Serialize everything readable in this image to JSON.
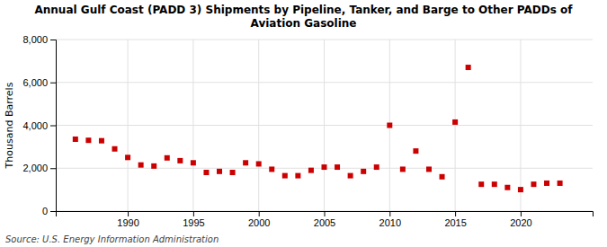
{
  "chart_data": {
    "type": "scatter",
    "title": "Annual Gulf Coast (PADD 3) Shipments by Pipeline, Tanker, and Barge to Other PADDs of\nAviation Gasoline",
    "y_label": "Thousand Barrels",
    "annotations": [
      "Source: U.S. Energy Information Administration"
    ],
    "x": [
      1986,
      1987,
      1988,
      1989,
      1990,
      1991,
      1992,
      1993,
      1994,
      1995,
      1996,
      1997,
      1998,
      1999,
      2000,
      2001,
      2002,
      2003,
      2004,
      2005,
      2006,
      2007,
      2008,
      2009,
      2010,
      2011,
      2012,
      2013,
      2014,
      2015,
      2016,
      2017,
      2018,
      2019,
      2020,
      2021,
      2022,
      2023
    ],
    "values": [
      3350,
      3300,
      3280,
      2900,
      2500,
      2150,
      2100,
      2480,
      2350,
      2250,
      1800,
      1850,
      1800,
      2250,
      2200,
      1950,
      1650,
      1650,
      1900,
      2050,
      2050,
      1650,
      1850,
      2050,
      4000,
      1950,
      2800,
      1950,
      1600,
      4150,
      6700,
      1250,
      1250,
      1100,
      1000,
      1250,
      1300,
      1300
    ],
    "color": "#cc0000",
    "marker": "square",
    "xlim": [
      1984.5,
      2025.5
    ],
    "xticks": [
      1990,
      1995,
      2000,
      2005,
      2010,
      2015,
      2020
    ],
    "ylim": [
      0,
      8000
    ],
    "yticks": [
      0,
      {
        "value": 2000,
        "label": "2,000"
      },
      {
        "value": 4000,
        "label": "4,000"
      },
      {
        "value": 6000,
        "label": "6,000"
      },
      {
        "value": 8000,
        "label": "8,000"
      }
    ],
    "grid": true
  }
}
